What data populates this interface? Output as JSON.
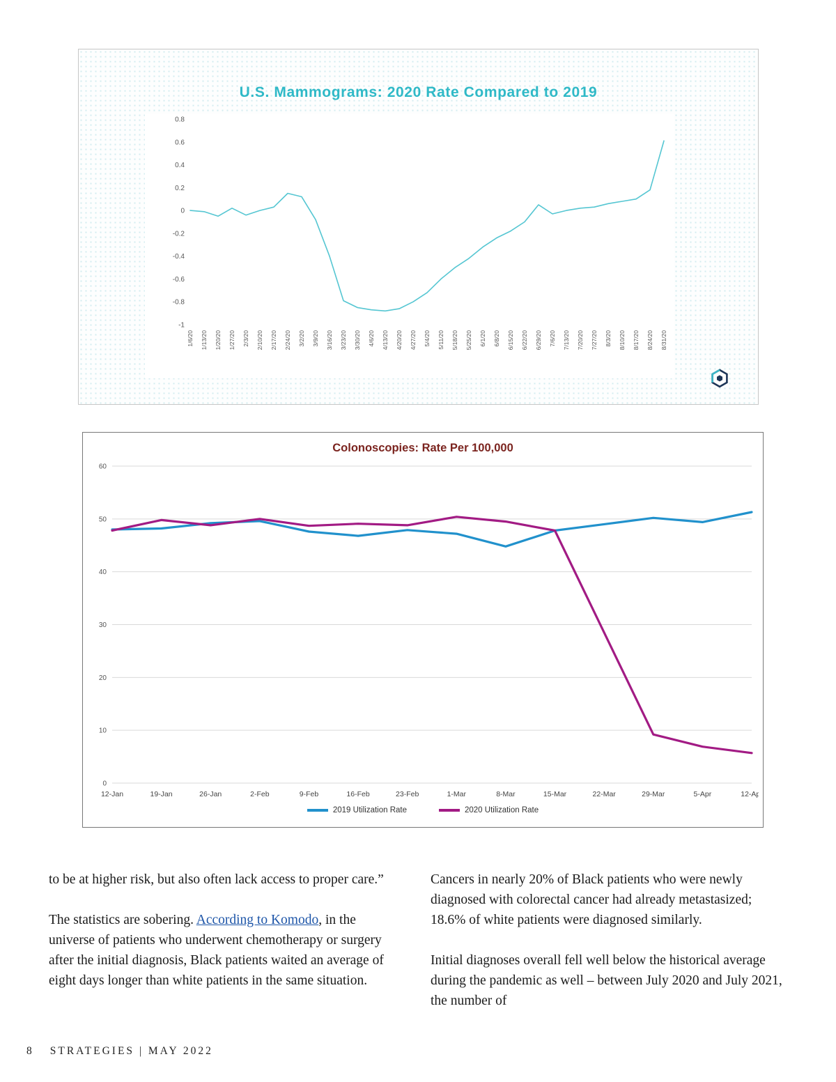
{
  "chart_data": [
    {
      "type": "line",
      "title": "U.S. Mammograms: 2020 Rate Compared to 2019",
      "title_color": "#2fb9c7",
      "categories": [
        "1/6/20",
        "1/13/20",
        "1/20/20",
        "1/27/20",
        "2/3/20",
        "2/10/20",
        "2/17/20",
        "2/24/20",
        "3/2/20",
        "3/9/20",
        "3/16/20",
        "3/23/20",
        "3/30/20",
        "4/6/20",
        "4/13/20",
        "4/20/20",
        "4/27/20",
        "5/4/20",
        "5/11/20",
        "5/18/20",
        "5/25/20",
        "6/1/20",
        "6/8/20",
        "6/15/20",
        "6/22/20",
        "6/29/20",
        "7/6/20",
        "7/13/20",
        "7/20/20",
        "7/27/20",
        "8/3/20",
        "8/10/20",
        "8/17/20",
        "8/24/20",
        "8/31/20"
      ],
      "series": [
        {
          "name": "2020 rate compared to 2019",
          "color": "#55c6d2",
          "values": [
            0.0,
            -0.01,
            -0.05,
            0.02,
            -0.04,
            0.0,
            0.03,
            0.15,
            0.12,
            -0.08,
            -0.4,
            -0.79,
            -0.85,
            -0.87,
            -0.88,
            -0.86,
            -0.8,
            -0.72,
            -0.6,
            -0.5,
            -0.42,
            -0.32,
            -0.24,
            -0.18,
            -0.1,
            0.05,
            -0.03,
            0.0,
            0.02,
            0.03,
            0.06,
            0.08,
            0.1,
            0.18,
            0.61
          ]
        }
      ],
      "ylim": [
        -1,
        0.8
      ],
      "yticks": [
        0.8,
        0.6,
        0.4,
        0.2,
        0,
        -0.2,
        -0.4,
        -0.6,
        -0.8,
        -1
      ],
      "grid": false,
      "x_label_rotation": 90,
      "legend_position": "none"
    },
    {
      "type": "line",
      "title": "Colonoscopies: Rate Per 100,000",
      "title_color": "#7b241f",
      "categories": [
        "12-Jan",
        "19-Jan",
        "26-Jan",
        "2-Feb",
        "9-Feb",
        "16-Feb",
        "23-Feb",
        "1-Mar",
        "8-Mar",
        "15-Mar",
        "22-Mar",
        "29-Mar",
        "5-Apr",
        "12-Apr"
      ],
      "series": [
        {
          "name": "2019 Utilization Rate",
          "color": "#2191cc",
          "values": [
            48.0,
            48.2,
            49.2,
            49.6,
            47.6,
            46.8,
            47.9,
            47.2,
            44.8,
            47.8,
            49.0,
            50.2,
            49.4,
            51.3
          ]
        },
        {
          "name": "2020 Utilization Rate",
          "color": "#a21b84",
          "values": [
            47.8,
            49.8,
            48.8,
            50.0,
            48.7,
            49.1,
            48.8,
            50.4,
            49.5,
            47.8,
            28.5,
            9.2,
            6.9,
            5.7
          ]
        }
      ],
      "ylim": [
        0,
        60
      ],
      "yticks": [
        60,
        50,
        40,
        30,
        20,
        10,
        0
      ],
      "grid": true,
      "x_label_rotation": 0,
      "legend_position": "bottom"
    }
  ],
  "article": {
    "left_column": {
      "p1": "to be at higher risk, but also often lack access to proper care.”",
      "p2_before": "The statistics are sobering. ",
      "p2_link": "According to Komodo",
      "p2_after": ", in the universe of patients who underwent chemotherapy or surgery after the initial diagnosis, Black patients waited an average of eight days longer than white patients in the same situation."
    },
    "right_column": {
      "p1": "Cancers in nearly 20% of Black patients who were newly diagnosed with colorectal cancer had already metastasized; 18.6% of white patients were diagnosed similarly.",
      "p2": "Initial diagnoses overall fell well below the historical average during the pandemic as well – between July 2020 and July 2021, the number of"
    }
  },
  "footer": {
    "page_number": "8",
    "publication": "STRATEGIES | MAY 2022"
  },
  "icons": {
    "komodo_logo": "komodo-health-hexagon-logo"
  }
}
